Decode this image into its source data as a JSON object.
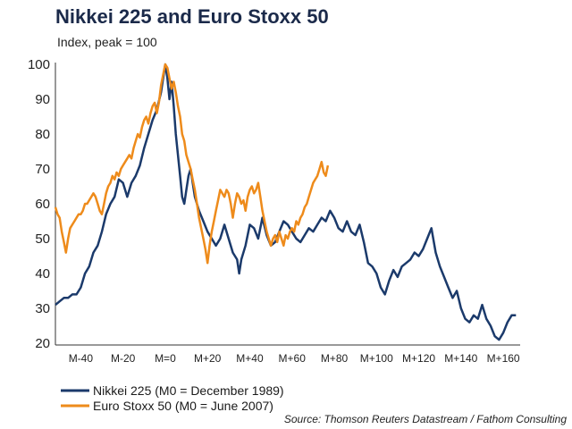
{
  "chart_data": {
    "type": "line",
    "title": "Nikkei 225 and Euro Stoxx 50",
    "subtitle": "Index, peak = 100",
    "source": "Source: Thomson Reuters Datastream / Fathom Consulting",
    "ylim": [
      20,
      100
    ],
    "xlim": [
      -52,
      168
    ],
    "y_ticks": [
      "100",
      "90",
      "80",
      "70",
      "60",
      "50",
      "40",
      "30",
      "20"
    ],
    "x_ticks": [
      {
        "label": "M-40",
        "x": -40
      },
      {
        "label": "M-20",
        "x": -20
      },
      {
        "label": "M=0",
        "x": 0
      },
      {
        "label": "M+20",
        "x": 20
      },
      {
        "label": "M+40",
        "x": 40
      },
      {
        "label": "M+60",
        "x": 60
      },
      {
        "label": "M+80",
        "x": 80
      },
      {
        "label": "M+100",
        "x": 100
      },
      {
        "label": "M+120",
        "x": 120
      },
      {
        "label": "M+140",
        "x": 140
      },
      {
        "label": "M+160",
        "x": 160
      }
    ],
    "grid": false,
    "legend_position": "bottom-left",
    "series": [
      {
        "name": "Nikkei 225 (M0 = December 1989)",
        "color": "#1b3a6b",
        "points": [
          [
            -52,
            31
          ],
          [
            -50,
            32
          ],
          [
            -48,
            33
          ],
          [
            -46,
            33
          ],
          [
            -44,
            34
          ],
          [
            -42,
            34
          ],
          [
            -40,
            36
          ],
          [
            -38,
            40
          ],
          [
            -36,
            42
          ],
          [
            -34,
            46
          ],
          [
            -32,
            48
          ],
          [
            -30,
            52
          ],
          [
            -28,
            57
          ],
          [
            -26,
            60
          ],
          [
            -24,
            62
          ],
          [
            -22,
            67
          ],
          [
            -20,
            66
          ],
          [
            -18,
            62
          ],
          [
            -16,
            66
          ],
          [
            -14,
            68
          ],
          [
            -12,
            71
          ],
          [
            -10,
            76
          ],
          [
            -8,
            80
          ],
          [
            -6,
            84
          ],
          [
            -4,
            87
          ],
          [
            -2,
            92
          ],
          [
            0,
            100
          ],
          [
            1,
            96
          ],
          [
            2,
            90
          ],
          [
            3,
            95
          ],
          [
            4,
            88
          ],
          [
            5,
            80
          ],
          [
            6,
            74
          ],
          [
            7,
            68
          ],
          [
            8,
            62
          ],
          [
            9,
            60
          ],
          [
            10,
            64
          ],
          [
            11,
            68
          ],
          [
            12,
            70
          ],
          [
            13,
            66
          ],
          [
            14,
            62
          ],
          [
            16,
            58
          ],
          [
            18,
            55
          ],
          [
            20,
            52
          ],
          [
            22,
            50
          ],
          [
            24,
            48
          ],
          [
            26,
            50
          ],
          [
            28,
            54
          ],
          [
            30,
            50
          ],
          [
            32,
            46
          ],
          [
            34,
            44
          ],
          [
            35,
            40
          ],
          [
            36,
            44
          ],
          [
            38,
            48
          ],
          [
            40,
            54
          ],
          [
            42,
            53
          ],
          [
            44,
            50
          ],
          [
            46,
            56
          ],
          [
            48,
            51
          ],
          [
            50,
            48
          ],
          [
            52,
            49
          ],
          [
            54,
            52
          ],
          [
            56,
            55
          ],
          [
            58,
            54
          ],
          [
            60,
            52
          ],
          [
            62,
            50
          ],
          [
            64,
            49
          ],
          [
            66,
            51
          ],
          [
            68,
            53
          ],
          [
            70,
            52
          ],
          [
            72,
            54
          ],
          [
            74,
            56
          ],
          [
            76,
            55
          ],
          [
            78,
            58
          ],
          [
            80,
            56
          ],
          [
            82,
            53
          ],
          [
            84,
            52
          ],
          [
            86,
            55
          ],
          [
            88,
            52
          ],
          [
            90,
            51
          ],
          [
            92,
            54
          ],
          [
            94,
            49
          ],
          [
            96,
            43
          ],
          [
            98,
            42
          ],
          [
            100,
            40
          ],
          [
            102,
            36
          ],
          [
            104,
            34
          ],
          [
            106,
            38
          ],
          [
            108,
            41
          ],
          [
            110,
            39
          ],
          [
            112,
            42
          ],
          [
            114,
            43
          ],
          [
            116,
            44
          ],
          [
            118,
            46
          ],
          [
            120,
            45
          ],
          [
            122,
            47
          ],
          [
            124,
            50
          ],
          [
            126,
            53
          ],
          [
            128,
            46
          ],
          [
            130,
            42
          ],
          [
            132,
            39
          ],
          [
            134,
            36
          ],
          [
            136,
            33
          ],
          [
            138,
            35
          ],
          [
            140,
            30
          ],
          [
            142,
            27
          ],
          [
            144,
            26
          ],
          [
            146,
            28
          ],
          [
            148,
            27
          ],
          [
            150,
            31
          ],
          [
            152,
            27
          ],
          [
            154,
            25
          ],
          [
            156,
            22
          ],
          [
            158,
            21
          ],
          [
            160,
            23
          ],
          [
            162,
            26
          ],
          [
            164,
            28
          ],
          [
            166,
            28
          ]
        ]
      },
      {
        "name": "Euro Stoxx 50 (M0 = June 2007)",
        "color": "#ee8b1b",
        "points": [
          [
            -52,
            59
          ],
          [
            -51,
            57
          ],
          [
            -50,
            56
          ],
          [
            -49,
            52
          ],
          [
            -48,
            49
          ],
          [
            -47,
            46
          ],
          [
            -46,
            50
          ],
          [
            -45,
            53
          ],
          [
            -44,
            54
          ],
          [
            -43,
            55
          ],
          [
            -42,
            56
          ],
          [
            -41,
            57
          ],
          [
            -40,
            57
          ],
          [
            -39,
            58
          ],
          [
            -38,
            60
          ],
          [
            -37,
            60
          ],
          [
            -36,
            61
          ],
          [
            -35,
            62
          ],
          [
            -34,
            63
          ],
          [
            -33,
            62
          ],
          [
            -32,
            60
          ],
          [
            -31,
            58
          ],
          [
            -30,
            57
          ],
          [
            -29,
            60
          ],
          [
            -28,
            63
          ],
          [
            -27,
            65
          ],
          [
            -26,
            66
          ],
          [
            -25,
            68
          ],
          [
            -24,
            67
          ],
          [
            -23,
            69
          ],
          [
            -22,
            68
          ],
          [
            -21,
            70
          ],
          [
            -20,
            71
          ],
          [
            -19,
            72
          ],
          [
            -18,
            73
          ],
          [
            -17,
            74
          ],
          [
            -16,
            73
          ],
          [
            -15,
            76
          ],
          [
            -14,
            78
          ],
          [
            -13,
            80
          ],
          [
            -12,
            79
          ],
          [
            -11,
            82
          ],
          [
            -10,
            84
          ],
          [
            -9,
            85
          ],
          [
            -8,
            83
          ],
          [
            -7,
            86
          ],
          [
            -6,
            88
          ],
          [
            -5,
            89
          ],
          [
            -4,
            86
          ],
          [
            -3,
            89
          ],
          [
            -2,
            94
          ],
          [
            -1,
            97
          ],
          [
            0,
            100
          ],
          [
            1,
            99
          ],
          [
            2,
            96
          ],
          [
            3,
            93
          ],
          [
            4,
            95
          ],
          [
            5,
            92
          ],
          [
            6,
            88
          ],
          [
            7,
            85
          ],
          [
            8,
            80
          ],
          [
            9,
            78
          ],
          [
            10,
            74
          ],
          [
            11,
            72
          ],
          [
            12,
            70
          ],
          [
            13,
            67
          ],
          [
            14,
            64
          ],
          [
            15,
            60
          ],
          [
            16,
            56
          ],
          [
            17,
            53
          ],
          [
            18,
            50
          ],
          [
            19,
            47
          ],
          [
            20,
            43
          ],
          [
            21,
            48
          ],
          [
            22,
            52
          ],
          [
            23,
            55
          ],
          [
            24,
            58
          ],
          [
            25,
            61
          ],
          [
            26,
            64
          ],
          [
            27,
            63
          ],
          [
            28,
            62
          ],
          [
            29,
            64
          ],
          [
            30,
            63
          ],
          [
            31,
            60
          ],
          [
            32,
            56
          ],
          [
            33,
            60
          ],
          [
            34,
            63
          ],
          [
            35,
            62
          ],
          [
            36,
            60
          ],
          [
            37,
            61
          ],
          [
            38,
            58
          ],
          [
            39,
            62
          ],
          [
            40,
            64
          ],
          [
            41,
            65
          ],
          [
            42,
            63
          ],
          [
            43,
            64
          ],
          [
            44,
            66
          ],
          [
            45,
            62
          ],
          [
            46,
            58
          ],
          [
            47,
            55
          ],
          [
            48,
            52
          ],
          [
            49,
            50
          ],
          [
            50,
            48
          ],
          [
            51,
            50
          ],
          [
            52,
            51
          ],
          [
            53,
            49
          ],
          [
            54,
            52
          ],
          [
            55,
            50
          ],
          [
            56,
            48
          ],
          [
            57,
            51
          ],
          [
            58,
            50
          ],
          [
            59,
            52
          ],
          [
            60,
            53
          ],
          [
            61,
            52
          ],
          [
            62,
            55
          ],
          [
            63,
            54
          ],
          [
            64,
            56
          ],
          [
            65,
            57
          ],
          [
            66,
            59
          ],
          [
            67,
            60
          ],
          [
            68,
            62
          ],
          [
            69,
            64
          ],
          [
            70,
            66
          ],
          [
            71,
            67
          ],
          [
            72,
            68
          ],
          [
            73,
            70
          ],
          [
            74,
            72
          ],
          [
            75,
            69
          ],
          [
            76,
            68
          ],
          [
            77,
            71
          ]
        ]
      }
    ]
  }
}
